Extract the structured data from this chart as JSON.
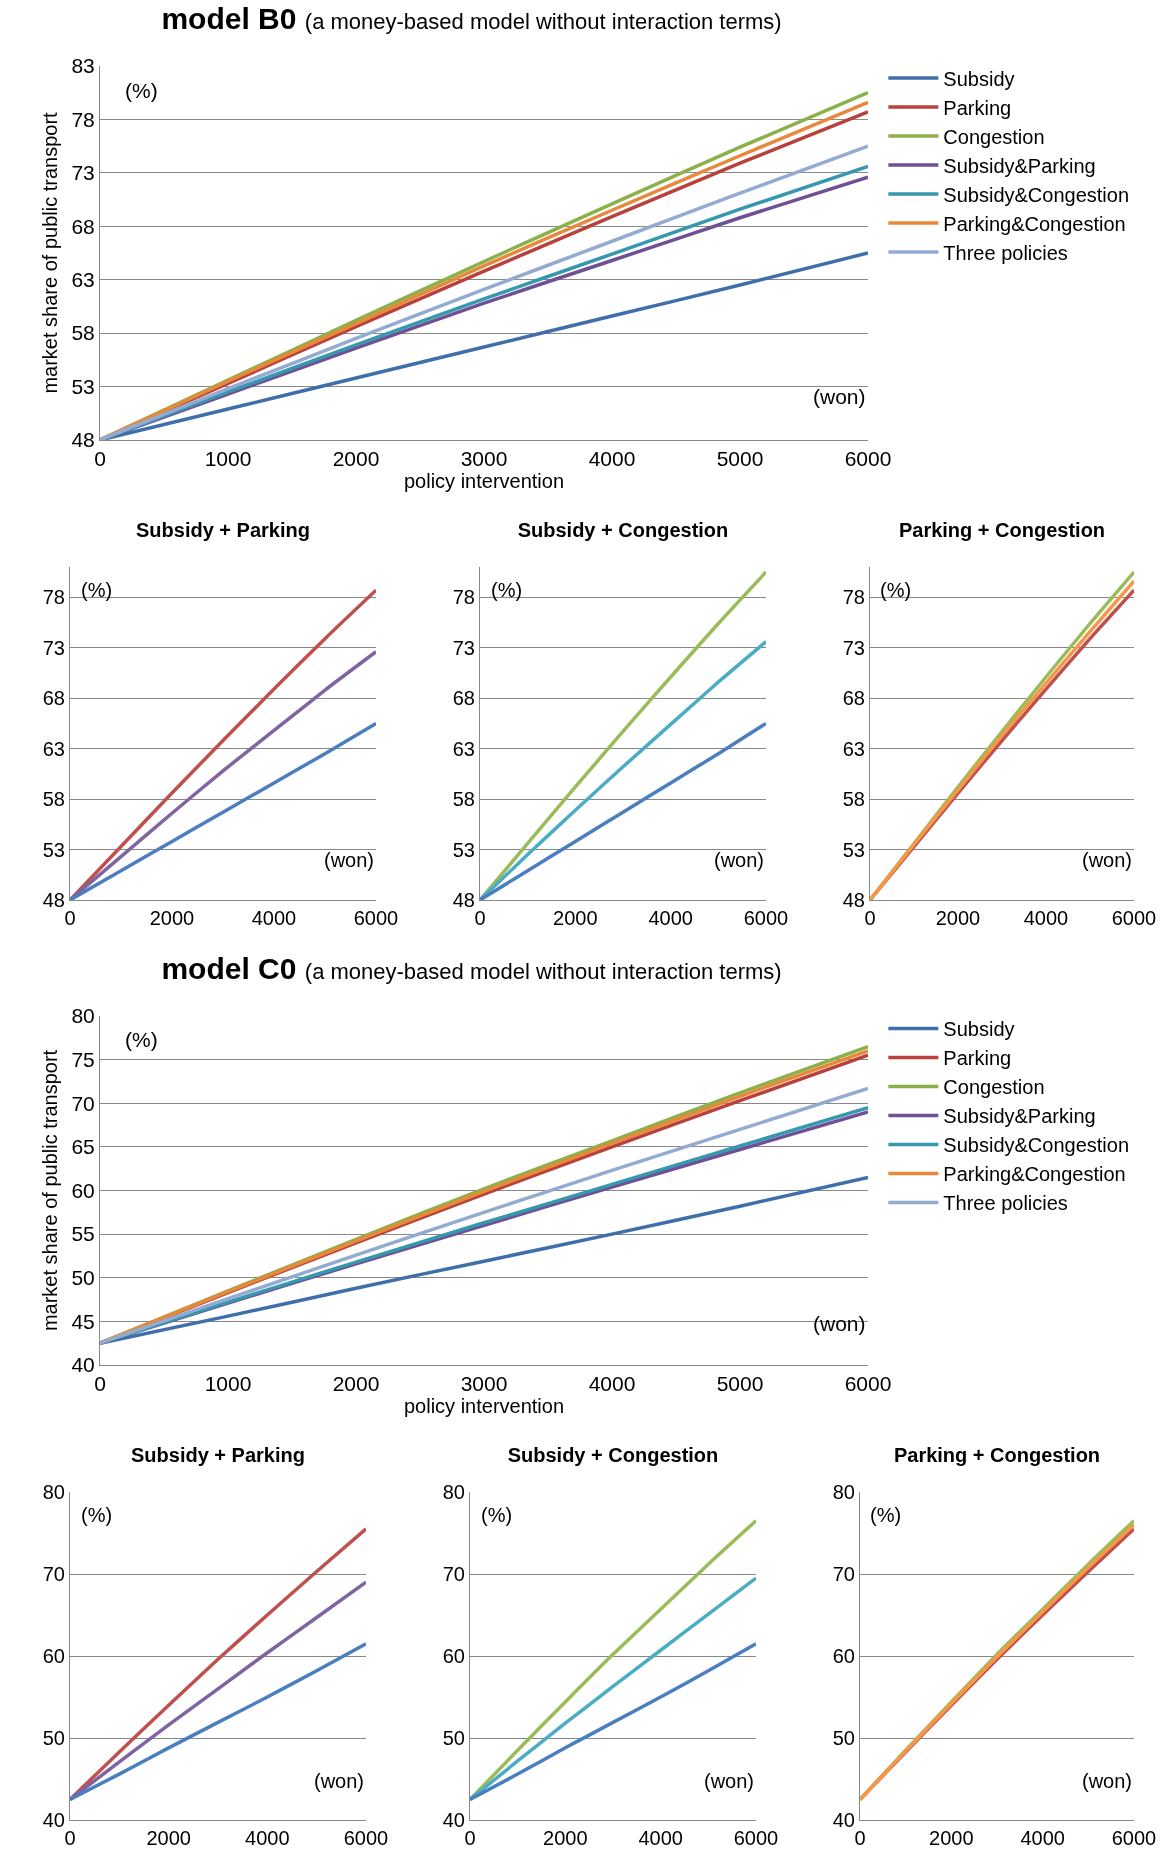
{
  "chart_data": [
    {
      "type": "line",
      "title": "model B0",
      "subtitle": "(a money-based model without interaction terms)",
      "xlabel": "policy intervention",
      "ylabel": "market share of public transport",
      "annotations": [
        "(%)",
        "(won)"
      ],
      "x": [
        0,
        1000,
        2000,
        3000,
        4000,
        5000,
        6000
      ],
      "xlim": [
        0,
        6000
      ],
      "xticks": [
        0,
        1000,
        2000,
        3000,
        4000,
        5000,
        6000
      ],
      "ylim": [
        48,
        83
      ],
      "yticks": [
        48,
        53,
        58,
        63,
        68,
        73,
        78,
        83
      ],
      "grid": "y",
      "legend": "right",
      "marker": "none",
      "series": [
        {
          "name": "Subsidy",
          "color": "#3f6faa",
          "values": [
            48,
            50.9,
            53.8,
            56.7,
            59.6,
            62.5,
            65.5
          ]
        },
        {
          "name": "Parking",
          "color": "#b8413e",
          "values": [
            48,
            53.3,
            58.6,
            63.8,
            68.9,
            73.9,
            78.7
          ]
        },
        {
          "name": "Congestion",
          "color": "#8cb04a",
          "values": [
            48,
            53.6,
            59.2,
            64.7,
            70.1,
            75.4,
            80.5
          ]
        },
        {
          "name": "Subsidy&Parking",
          "color": "#6f4f96",
          "values": [
            48,
            52.3,
            56.6,
            60.8,
            64.8,
            68.8,
            72.6
          ]
        },
        {
          "name": "Subsidy&Congestion",
          "color": "#3698ae",
          "values": [
            48,
            52.5,
            56.9,
            61.2,
            65.4,
            69.6,
            73.6
          ]
        },
        {
          "name": "Parking&Congestion",
          "color": "#e8883a",
          "values": [
            48,
            53.5,
            58.9,
            64.3,
            69.5,
            74.6,
            79.6
          ]
        },
        {
          "name": "Three policies",
          "color": "#93abd3",
          "values": [
            48,
            52.8,
            57.5,
            62.1,
            66.6,
            71.1,
            75.5
          ]
        }
      ]
    },
    {
      "type": "line",
      "title": "Subsidy + Parking",
      "annotations": [
        "(%)",
        "(won)"
      ],
      "x": [
        0,
        1000,
        2000,
        3000,
        4000,
        5000,
        6000
      ],
      "xlim": [
        0,
        6000
      ],
      "xticks": [
        0,
        2000,
        4000,
        6000
      ],
      "ylim": [
        48,
        81
      ],
      "yticks": [
        48,
        53,
        58,
        63,
        68,
        73,
        78
      ],
      "grid": "y",
      "marker": "none",
      "series": [
        {
          "color": "#c0504d",
          "values": [
            48,
            53.3,
            58.6,
            63.8,
            68.9,
            73.9,
            78.7
          ]
        },
        {
          "color": "#8064a2",
          "values": [
            48,
            52.3,
            56.6,
            60.8,
            64.8,
            68.8,
            72.6
          ]
        },
        {
          "color": "#4a7ebf",
          "values": [
            48,
            50.9,
            53.8,
            56.7,
            59.6,
            62.5,
            65.5
          ]
        }
      ]
    },
    {
      "type": "line",
      "title": "Subsidy + Congestion",
      "annotations": [
        "(%)",
        "(won)"
      ],
      "x": [
        0,
        1000,
        2000,
        3000,
        4000,
        5000,
        6000
      ],
      "xlim": [
        0,
        6000
      ],
      "xticks": [
        0,
        2000,
        4000,
        6000
      ],
      "ylim": [
        48,
        81
      ],
      "yticks": [
        48,
        53,
        58,
        63,
        68,
        73,
        78
      ],
      "grid": "y",
      "marker": "none",
      "series": [
        {
          "color": "#9bbb59",
          "values": [
            48,
            53.6,
            59.2,
            64.7,
            70.1,
            75.4,
            80.5
          ]
        },
        {
          "color": "#4bacc6",
          "values": [
            48,
            52.5,
            56.9,
            61.2,
            65.4,
            69.6,
            73.6
          ]
        },
        {
          "color": "#4a7ebf",
          "values": [
            48,
            50.9,
            53.8,
            56.7,
            59.6,
            62.5,
            65.5
          ]
        }
      ]
    },
    {
      "type": "line",
      "title": "Parking + Congestion",
      "annotations": [
        "(%)",
        "(won)"
      ],
      "x": [
        0,
        1000,
        2000,
        3000,
        4000,
        5000,
        6000
      ],
      "xlim": [
        0,
        6000
      ],
      "xticks": [
        0,
        2000,
        4000,
        6000
      ],
      "ylim": [
        48,
        81
      ],
      "yticks": [
        48,
        53,
        58,
        63,
        68,
        73,
        78
      ],
      "grid": "y",
      "marker": "none",
      "series": [
        {
          "color": "#c0504d",
          "values": [
            48,
            53.3,
            58.6,
            63.8,
            68.9,
            73.9,
            78.7
          ]
        },
        {
          "color": "#9bbb59",
          "values": [
            48,
            53.6,
            59.2,
            64.7,
            70.1,
            75.4,
            80.5
          ]
        },
        {
          "color": "#f79646",
          "values": [
            48,
            53.5,
            58.9,
            64.3,
            69.5,
            74.6,
            79.6
          ]
        }
      ]
    },
    {
      "type": "line",
      "title": "model C0",
      "subtitle": "(a money-based model without interaction terms)",
      "xlabel": "policy intervention",
      "ylabel": "market share of public transport",
      "annotations": [
        "(%)",
        "(won)"
      ],
      "x": [
        0,
        1000,
        2000,
        3000,
        4000,
        5000,
        6000
      ],
      "xlim": [
        0,
        6000
      ],
      "xticks": [
        0,
        1000,
        2000,
        3000,
        4000,
        5000,
        6000
      ],
      "ylim": [
        40,
        80
      ],
      "yticks": [
        40,
        45,
        50,
        55,
        60,
        65,
        70,
        75,
        80
      ],
      "grid": "y",
      "legend": "right",
      "marker": "none",
      "series": [
        {
          "name": "Subsidy",
          "color": "#3f6faa",
          "values": [
            42.5,
            45.6,
            48.8,
            51.9,
            55,
            58.2,
            61.5
          ]
        },
        {
          "name": "Parking",
          "color": "#b8413e",
          "values": [
            42.5,
            48.3,
            54.0,
            59.6,
            65.0,
            70.3,
            75.5
          ]
        },
        {
          "name": "Congestion",
          "color": "#8cb04a",
          "values": [
            42.5,
            48.5,
            54.4,
            60.2,
            65.7,
            71.2,
            76.5
          ]
        },
        {
          "name": "Subsidy&Parking",
          "color": "#6f4f96",
          "values": [
            42.5,
            47.1,
            51.6,
            56.0,
            60.4,
            64.7,
            69.0
          ]
        },
        {
          "name": "Subsidy&Congestion",
          "color": "#3698ae",
          "values": [
            42.5,
            47.2,
            51.8,
            56.3,
            60.7,
            65.1,
            69.5
          ]
        },
        {
          "name": "Parking&Congestion",
          "color": "#e8883a",
          "values": [
            42.5,
            48.4,
            54.2,
            59.9,
            65.4,
            70.8,
            76.0
          ]
        },
        {
          "name": "Three policies",
          "color": "#93abd3",
          "values": [
            42.5,
            47.6,
            52.6,
            57.5,
            62.3,
            67.0,
            71.7
          ]
        }
      ]
    },
    {
      "type": "line",
      "title": "Subsidy + Parking",
      "annotations": [
        "(%)",
        "(won)"
      ],
      "x": [
        0,
        1000,
        2000,
        3000,
        4000,
        5000,
        6000
      ],
      "xlim": [
        0,
        6000
      ],
      "xticks": [
        0,
        2000,
        4000,
        6000
      ],
      "ylim": [
        40,
        80
      ],
      "yticks": [
        40,
        50,
        60,
        70,
        80
      ],
      "grid": "y",
      "marker": "none",
      "series": [
        {
          "color": "#c0504d",
          "values": [
            42.5,
            48.3,
            54.0,
            59.6,
            65.0,
            70.3,
            75.5
          ]
        },
        {
          "color": "#8064a2",
          "values": [
            42.5,
            47.1,
            51.6,
            56.0,
            60.4,
            64.7,
            69.0
          ]
        },
        {
          "color": "#4a7ebf",
          "values": [
            42.5,
            45.6,
            48.8,
            51.9,
            55,
            58.2,
            61.5
          ]
        }
      ]
    },
    {
      "type": "line",
      "title": "Subsidy + Congestion",
      "annotations": [
        "(%)",
        "(won)"
      ],
      "x": [
        0,
        1000,
        2000,
        3000,
        4000,
        5000,
        6000
      ],
      "xlim": [
        0,
        6000
      ],
      "xticks": [
        0,
        2000,
        4000,
        6000
      ],
      "ylim": [
        40,
        80
      ],
      "yticks": [
        40,
        50,
        60,
        70,
        80
      ],
      "grid": "y",
      "marker": "none",
      "series": [
        {
          "color": "#9bbb59",
          "values": [
            42.5,
            48.5,
            54.4,
            60.2,
            65.7,
            71.2,
            76.5
          ]
        },
        {
          "color": "#4bacc6",
          "values": [
            42.5,
            47.2,
            51.8,
            56.3,
            60.7,
            65.1,
            69.5
          ]
        },
        {
          "color": "#4a7ebf",
          "values": [
            42.5,
            45.6,
            48.8,
            51.9,
            55,
            58.2,
            61.5
          ]
        }
      ]
    },
    {
      "type": "line",
      "title": "Parking + Congestion",
      "annotations": [
        "(%)",
        "(won)"
      ],
      "x": [
        0,
        1000,
        2000,
        3000,
        4000,
        5000,
        6000
      ],
      "xlim": [
        0,
        6000
      ],
      "xticks": [
        0,
        2000,
        4000,
        6000
      ],
      "ylim": [
        40,
        80
      ],
      "yticks": [
        40,
        50,
        60,
        70,
        80
      ],
      "grid": "y",
      "marker": "none",
      "series": [
        {
          "color": "#c0504d",
          "values": [
            42.5,
            48.3,
            54.0,
            59.6,
            65.0,
            70.3,
            75.5
          ]
        },
        {
          "color": "#9bbb59",
          "values": [
            42.5,
            48.5,
            54.4,
            60.2,
            65.7,
            71.2,
            76.5
          ]
        },
        {
          "color": "#f79646",
          "values": [
            42.5,
            48.4,
            54.2,
            59.9,
            65.4,
            70.8,
            76.0
          ]
        }
      ]
    }
  ]
}
